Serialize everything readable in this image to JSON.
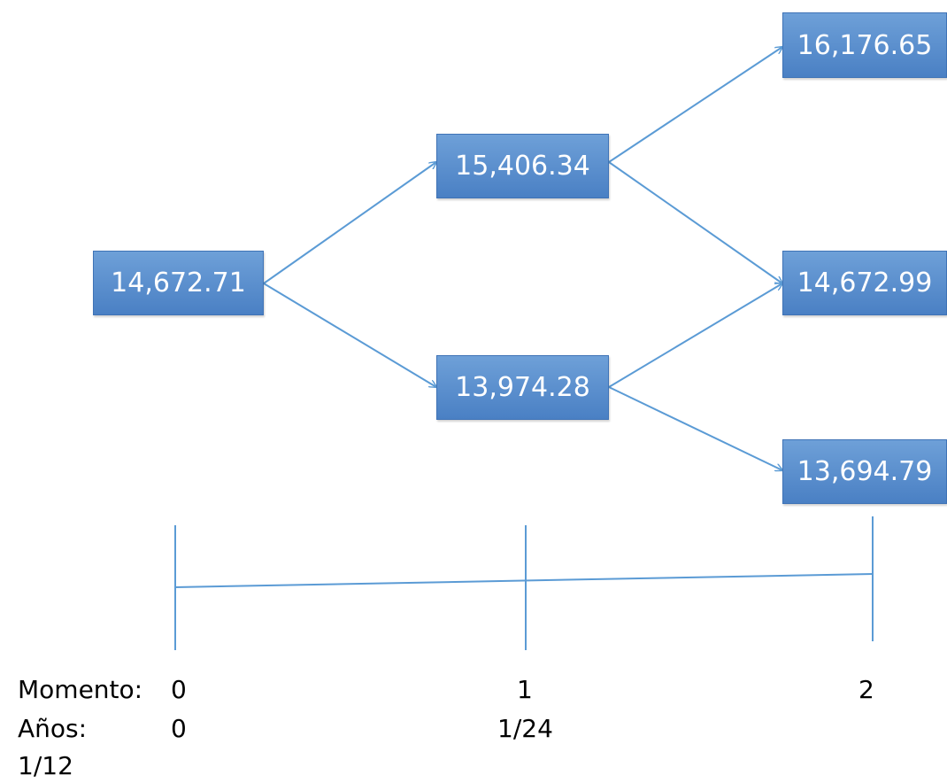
{
  "tree": {
    "root": "14,672.71",
    "up": "15,406.34",
    "down": "13,974.28",
    "upup": "16,176.65",
    "middle": "14,672.99",
    "downdown": "13,694.79"
  },
  "timeline": {
    "momento_label": "Momento:",
    "momento_0": "0",
    "momento_1": "1",
    "momento_2": "2",
    "anos_label": "Años:",
    "anos_0": "0",
    "anos_1": "1/24",
    "anos_2": "1/12"
  },
  "colors": {
    "node_fill": "#4f81bd",
    "line": "#5b9bd5"
  }
}
